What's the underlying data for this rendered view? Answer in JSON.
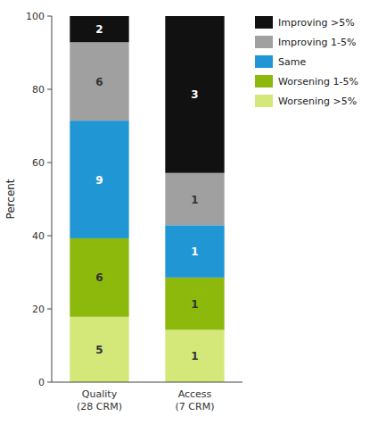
{
  "chart_data": {
    "type": "bar",
    "stacked": true,
    "categories": [
      "Quality\n(28 CRM)",
      "Access\n(7 CRM)"
    ],
    "series": [
      {
        "name": "Worsening >5%",
        "color": "#d4e87a",
        "values": [
          17.857142857142858,
          14.285714285714285
        ],
        "counts": [
          5,
          1
        ]
      },
      {
        "name": "Worsening 1-5%",
        "color": "#8db90d",
        "values": [
          21.428571428571427,
          14.285714285714285
        ],
        "counts": [
          6,
          1
        ]
      },
      {
        "name": "Same",
        "color": "#2196d4",
        "values": [
          32.142857142857146,
          14.285714285714285
        ],
        "counts": [
          9,
          1
        ]
      },
      {
        "name": "Improving 1-5%",
        "color": "#a0a0a0",
        "values": [
          21.428571428571427,
          14.285714285714285
        ],
        "counts": [
          6,
          1
        ]
      },
      {
        "name": "Improving >5%",
        "color": "#111111",
        "values": [
          7.142857142857143,
          42.857142857142854
        ],
        "counts": [
          2,
          3
        ]
      }
    ],
    "ylabel": "Percent",
    "ylim": [
      0,
      100
    ],
    "yticks": [
      0,
      20,
      40,
      60,
      80,
      100
    ],
    "grid": false,
    "legend": "right"
  }
}
